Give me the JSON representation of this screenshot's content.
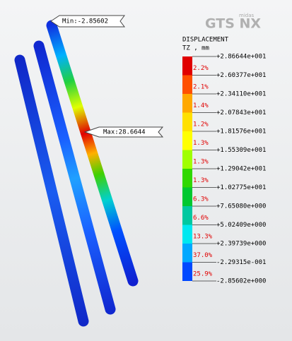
{
  "logo": {
    "brand": "midas",
    "product": "GTS NX"
  },
  "legend": {
    "title": "DISPLACEMENT",
    "subtitle": "TZ , mm",
    "levels": [
      "+2.86644e+001",
      "+2.60377e+001",
      "+2.34110e+001",
      "+2.07843e+001",
      "+1.81576e+001",
      "+1.55309e+001",
      "+1.29042e+001",
      "+1.02775e+001",
      "+7.65080e+000",
      "+5.02409e+000",
      "+2.39739e+000",
      "-2.29315e-001",
      "-2.85602e+000"
    ],
    "percentages": [
      "2.2%",
      "2.1%",
      "1.4%",
      "1.2%",
      "1.3%",
      "1.3%",
      "1.3%",
      "6.3%",
      "6.6%",
      "13.3%",
      "37.0%",
      "25.9%"
    ]
  },
  "callouts": {
    "min": "Min:-2.85602",
    "max": "Max:28.6644"
  }
}
